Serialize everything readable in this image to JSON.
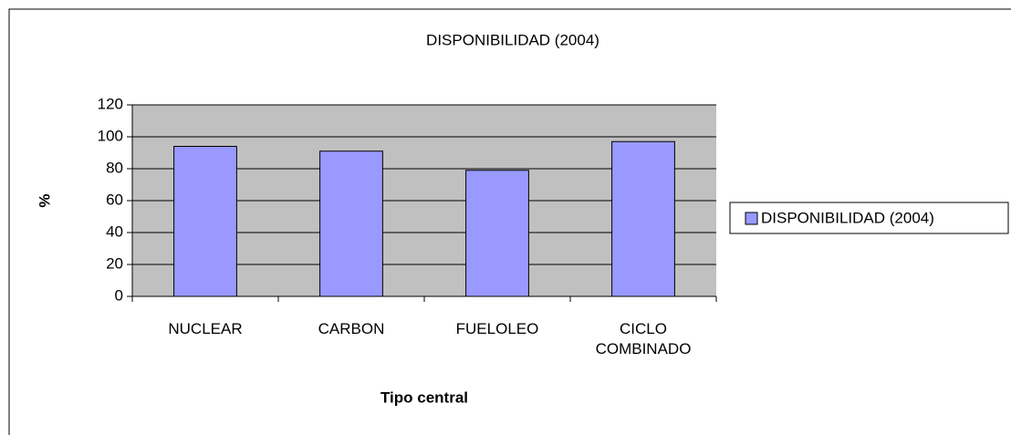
{
  "chart_data": {
    "type": "bar",
    "title": "DISPONIBILIDAD (2004)",
    "x_label": "Tipo central",
    "y_label": "%",
    "categories": [
      "NUCLEAR",
      "CARBON",
      "FUELOLEO",
      "CICLO COMBINADO"
    ],
    "series": [
      {
        "name": "DISPONIBILIDAD (2004)",
        "color": "#9999ff",
        "values": [
          94,
          91,
          79,
          97
        ]
      }
    ],
    "ylim": [
      0,
      120
    ],
    "yticks": [
      0,
      20,
      40,
      60,
      80,
      100,
      120
    ],
    "grid": true,
    "legend": "right"
  }
}
